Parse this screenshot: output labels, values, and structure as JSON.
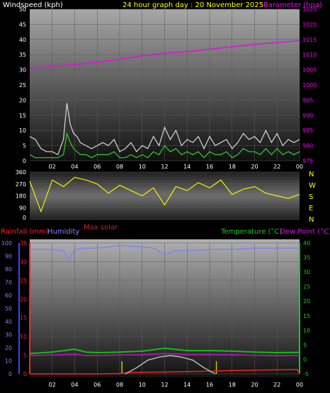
{
  "header": {
    "left": "Windspeed (kph)",
    "center": "24 hour graph day : 20 November 2025",
    "right": "Barometer (hpa)"
  },
  "panel2": {
    "compass": [
      "N",
      "W",
      "S",
      "E",
      "N"
    ],
    "max_solar": "Max solar"
  },
  "panel3_header": {
    "rain": "Rainfall (mm)",
    "humidity": "Humidity",
    "temperature": "Temperature (°C)",
    "dewpoint": "Dew Point (°C)"
  },
  "colors": {
    "wind_gust": "#d8d8d8",
    "wind_avg": "#2fd02f",
    "barometer": "#e010e0",
    "direction": "#f0f000",
    "rain": "#ff2020",
    "humidity": "#8080ff",
    "temperature": "#10c010",
    "dewpoint": "#c010c0",
    "solar": "#b8b8b8",
    "sun_marker": "#d8c000"
  },
  "chart_data": [
    {
      "type": "line",
      "title": "24 hour graph day : 20 November 2025",
      "x_ticks": [
        "02",
        "04",
        "06",
        "08",
        "10",
        "12",
        "14",
        "16",
        "18",
        "20",
        "22",
        "00"
      ],
      "ylabel": "Windspeed (kph)",
      "ylim": [
        0,
        50
      ],
      "yticks": [
        0,
        5,
        10,
        15,
        20,
        25,
        30,
        35,
        40,
        45,
        50
      ],
      "y2label": "Barometer (hpa)",
      "y2lim": [
        975,
        1025
      ],
      "y2ticks": [
        975,
        980,
        985,
        990,
        995,
        1000,
        1005,
        1010,
        1015,
        1020,
        1025
      ],
      "series": [
        {
          "name": "Windspeed (kph)",
          "key": "wind_gust",
          "x": [
            0,
            0.5,
            1,
            1.5,
            2,
            2.5,
            3,
            3.3,
            3.6,
            3.9,
            4.2,
            4.5,
            5,
            5.5,
            6,
            6.5,
            7,
            7.5,
            8,
            8.5,
            9,
            9.5,
            10,
            10.5,
            11,
            11.5,
            12,
            12.5,
            13,
            13.5,
            14,
            14.5,
            15,
            15.5,
            16,
            16.5,
            17,
            17.5,
            18,
            18.5,
            19,
            19.5,
            20,
            20.5,
            21,
            21.5,
            22,
            22.5,
            23,
            23.5,
            24
          ],
          "values": [
            8,
            7,
            4,
            3,
            3,
            2,
            7,
            19,
            12,
            9,
            8,
            6,
            5,
            4,
            5,
            6,
            5,
            7,
            3,
            4,
            6,
            3,
            5,
            4,
            8,
            5,
            11,
            7,
            10,
            5,
            7,
            6,
            8,
            4,
            8,
            5,
            6,
            7,
            4,
            6,
            9,
            7,
            8,
            6,
            10,
            6,
            9,
            5,
            7,
            6,
            7
          ]
        },
        {
          "name": "Average wind",
          "key": "wind_avg",
          "x": [
            0,
            0.5,
            1,
            1.5,
            2,
            2.5,
            3,
            3.3,
            3.6,
            3.9,
            4.2,
            4.5,
            5,
            5.5,
            6,
            6.5,
            7,
            7.5,
            8,
            8.5,
            9,
            9.5,
            10,
            10.5,
            11,
            11.5,
            12,
            12.5,
            13,
            13.5,
            14,
            14.5,
            15,
            15.5,
            16,
            16.5,
            17,
            17.5,
            18,
            18.5,
            19,
            19.5,
            20,
            20.5,
            21,
            21.5,
            22,
            22.5,
            23,
            23.5,
            24
          ],
          "values": [
            2,
            1,
            1,
            1,
            1,
            1,
            2,
            9,
            6,
            4,
            3,
            2,
            2,
            1,
            2,
            2,
            2,
            3,
            1,
            1,
            2,
            1,
            2,
            1,
            3,
            2,
            5,
            3,
            4,
            2,
            3,
            2,
            3,
            1,
            3,
            2,
            2,
            3,
            1,
            2,
            4,
            3,
            3,
            2,
            4,
            2,
            4,
            2,
            3,
            2,
            3
          ]
        },
        {
          "name": "Barometer (hpa)",
          "key": "barometer",
          "axis": "right",
          "x": [
            0,
            2,
            4,
            6,
            8,
            10,
            12,
            14,
            16,
            18,
            20,
            22,
            24
          ],
          "values": [
            1005.5,
            1006.2,
            1006.8,
            1007.5,
            1008.5,
            1009.6,
            1010.5,
            1011.0,
            1011.8,
            1012.6,
            1013.4,
            1014.0,
            1014.6
          ]
        }
      ]
    },
    {
      "type": "line",
      "x_ticks": [
        "02",
        "04",
        "06",
        "08",
        "10",
        "12",
        "14",
        "16",
        "18",
        "20",
        "22",
        "00"
      ],
      "ylim": [
        0,
        360
      ],
      "yticks": [
        0,
        90,
        180,
        270,
        360
      ],
      "y2ticks": [
        "N",
        "E",
        "S",
        "W",
        "N"
      ],
      "series": [
        {
          "name": "Wind direction",
          "key": "direction",
          "x": [
            0,
            1,
            2,
            3,
            4,
            5,
            6,
            7,
            8,
            9,
            10,
            11,
            12,
            13,
            14,
            15,
            16,
            17,
            18,
            19,
            20,
            21,
            22,
            23,
            24
          ],
          "values": [
            290,
            60,
            300,
            250,
            320,
            300,
            270,
            200,
            260,
            220,
            180,
            240,
            110,
            250,
            220,
            280,
            240,
            300,
            190,
            230,
            250,
            200,
            180,
            160,
            190
          ]
        }
      ]
    },
    {
      "type": "line",
      "x_ticks": [
        "02",
        "04",
        "06",
        "08",
        "10",
        "12",
        "14",
        "16",
        "18",
        "20",
        "22",
        "00"
      ],
      "ylabel": "Rainfall (mm)",
      "ylim": [
        0,
        100
      ],
      "yticks": [
        0,
        5,
        10,
        15,
        20,
        25,
        30,
        35
      ],
      "y_humidity_ticks": [
        0,
        10,
        20,
        30,
        40,
        50,
        60,
        70,
        80,
        90,
        100
      ],
      "y2label": "Temperature (°C)",
      "y2lim": [
        -5,
        40
      ],
      "y2ticks": [
        -5,
        0,
        5,
        10,
        15,
        20,
        25,
        30,
        35,
        40
      ],
      "series": [
        {
          "name": "Humidity",
          "key": "humidity",
          "x": [
            0,
            1,
            2,
            3,
            3.5,
            4,
            5,
            6,
            8,
            10,
            11,
            12,
            13,
            14,
            16,
            18,
            20,
            22,
            24
          ],
          "values": [
            95,
            95,
            95,
            94,
            87,
            95,
            96,
            96,
            98,
            97,
            96,
            91,
            94,
            94,
            95,
            95,
            96,
            96,
            96
          ]
        },
        {
          "name": "Temperature (°C)",
          "key": "temperature",
          "axis": "right",
          "x": [
            0,
            2,
            4,
            5,
            6,
            8,
            10,
            12,
            14,
            16,
            18,
            20,
            22,
            24
          ],
          "values": [
            2.0,
            2.5,
            3.5,
            2.5,
            2.3,
            2.5,
            2.8,
            3.8,
            3.0,
            3.0,
            2.8,
            2.5,
            2.3,
            2.4
          ]
        },
        {
          "name": "Dew Point (°C)",
          "key": "dewpoint",
          "axis": "right",
          "x": [
            0,
            2,
            4,
            5,
            6,
            8,
            10,
            12,
            14,
            16,
            18,
            20,
            22,
            24
          ],
          "values": [
            1.3,
            1.5,
            1.8,
            1.3,
            1.3,
            1.5,
            1.6,
            2.0,
            1.7,
            1.7,
            1.6,
            1.4,
            1.2,
            1.3
          ]
        },
        {
          "name": "Rainfall (mm)",
          "key": "rain",
          "x": [
            0,
            2,
            4,
            6,
            8,
            9,
            12,
            14,
            16,
            18,
            20,
            22,
            23.8,
            24
          ],
          "values": [
            0,
            0,
            0,
            0,
            0.1,
            0.4,
            0.5,
            0.6,
            0.7,
            0.9,
            1.0,
            1.1,
            1.2,
            0
          ]
        },
        {
          "name": "Max solar",
          "key": "solar",
          "x": [
            8.5,
            9.5,
            10.5,
            11.5,
            12.5,
            13.5,
            14.5,
            15.5,
            16.5
          ],
          "values": [
            0,
            4,
            9,
            11,
            12,
            11,
            9,
            4,
            0
          ]
        }
      ]
    }
  ]
}
